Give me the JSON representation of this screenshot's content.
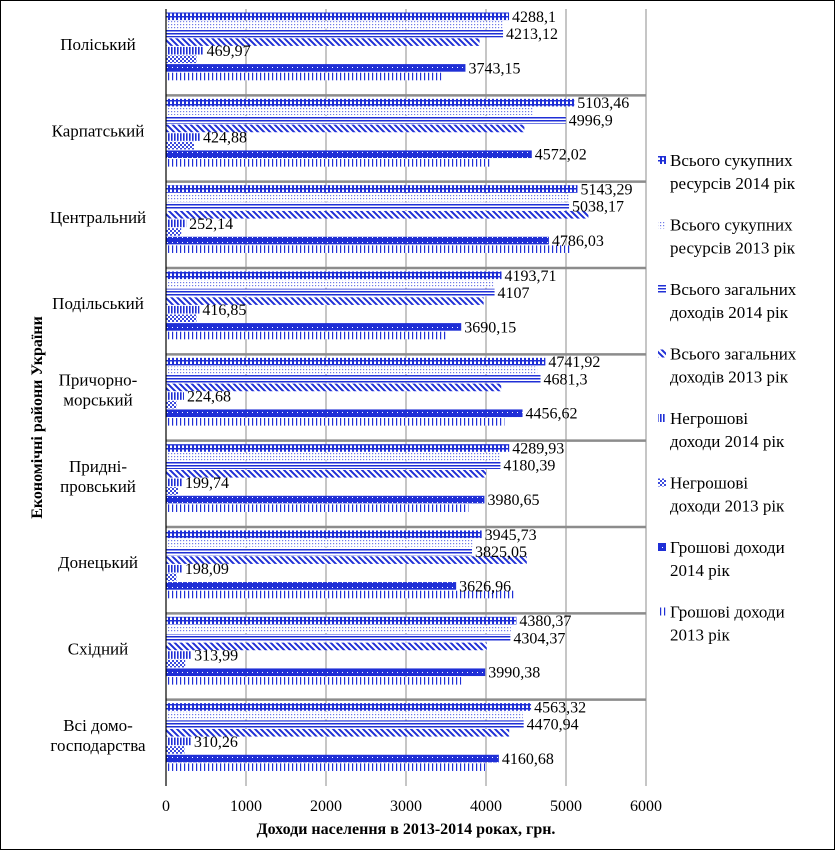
{
  "chart_data": {
    "type": "bar",
    "orientation": "horizontal",
    "title": "",
    "xlabel": "Доходи населення в 2013-2014 роках, грн.",
    "ylabel": "Економічні райони України",
    "xlim": [
      0,
      6000
    ],
    "xticks": [
      "0",
      "1000",
      "2000",
      "3000",
      "4000",
      "5000",
      "6000"
    ],
    "grid": "vertical",
    "legend_position": "right",
    "categories": [
      [
        "Поліський"
      ],
      [
        "Карпатський"
      ],
      [
        "Центральний"
      ],
      [
        "Подільський"
      ],
      [
        "Причорно-",
        "морський"
      ],
      [
        "Придні-",
        "провський"
      ],
      [
        "Донецький"
      ],
      [
        "Східний"
      ],
      [
        "Всі домо-",
        "господарства"
      ]
    ],
    "series": [
      {
        "name": "Всього сукупних ресурсів 2014 рік",
        "pattern": "grid",
        "values": [
          4288.1,
          5103.46,
          5143.29,
          4193.71,
          4741.92,
          4289.93,
          3945.73,
          4380.37,
          4563.32
        ],
        "labels": [
          "4288,1",
          "5103,46",
          "5143,29",
          "4193,71",
          "4741,92",
          "4289,93",
          "3945,73",
          "4380,37",
          "4563,32"
        ]
      },
      {
        "name": "Всього сукупних ресурсів 2013 рік",
        "pattern": "dots",
        "values": [
          4210,
          4600,
          5050,
          4090,
          4640,
          4180,
          3830,
          4310,
          4460
        ]
      },
      {
        "name": "Всього загальних доходів 2014 рік",
        "pattern": "hlines",
        "values": [
          4213.12,
          4996.9,
          5038.17,
          4107,
          4681.3,
          4180.39,
          3825.05,
          4304.37,
          4470.94
        ],
        "labels": [
          "4213,12",
          "4996,9",
          "5038,17",
          "4107",
          "4681,3",
          "4180,39",
          "3825,05",
          "4304,37",
          "4470,94"
        ]
      },
      {
        "name": "Всього загальних доходів 2013 рік",
        "pattern": "diag",
        "values": [
          3920,
          4480,
          5280,
          3970,
          4190,
          4000,
          4510,
          4010,
          4290
        ]
      },
      {
        "name": "Негрошові доходи 2014 рік",
        "pattern": "vlines",
        "values": [
          469.97,
          424.88,
          252.14,
          416.85,
          224.68,
          199.74,
          198.09,
          313.99,
          310.26
        ],
        "labels": [
          "469,97",
          "424,88",
          "252,14",
          "416,85",
          "224,68",
          "199,74",
          "198,09",
          "313,99",
          "310,26"
        ]
      },
      {
        "name": "Негрошові доходи 2013 рік",
        "pattern": "checker",
        "values": [
          380,
          350,
          190,
          380,
          130,
          150,
          130,
          240,
          230
        ]
      },
      {
        "name": "Грошові доходи 2014 рік",
        "pattern": "solid",
        "values": [
          3743.15,
          4572.02,
          4786.03,
          3690.15,
          4456.62,
          3980.65,
          3626.96,
          3990.38,
          4160.68
        ],
        "labels": [
          "3743,15",
          "4572,02",
          "4786,03",
          "3690,15",
          "4456,62",
          "3980,65",
          "3626,96",
          "3990,38",
          "4160,68"
        ]
      },
      {
        "name": "Грошові доходи 2013 рік",
        "pattern": "vlines-sparse",
        "values": [
          3440,
          4060,
          5050,
          3500,
          4230,
          3780,
          4350,
          3690,
          4000
        ]
      }
    ],
    "legend": [
      [
        "Всього сукупних",
        "ресурсів 2014 рік"
      ],
      [
        "Всього сукупних",
        "ресурсів 2013 рік"
      ],
      [
        "Всього загальних",
        "доходів 2014 рік"
      ],
      [
        "Всього загальних",
        "доходів 2013 рік"
      ],
      [
        "Негрошові",
        "доходи 2014 рік"
      ],
      [
        "Негрошові",
        "доходи 2013 рік"
      ],
      [
        "Грошові доходи",
        "2014 рік"
      ],
      [
        "Грошові доходи",
        "2013 рік"
      ]
    ],
    "colors": {
      "bar": "#1f2fd6",
      "grid": "#8c8c8c",
      "separator": "#8c8c8c",
      "axis": "#000000"
    }
  }
}
